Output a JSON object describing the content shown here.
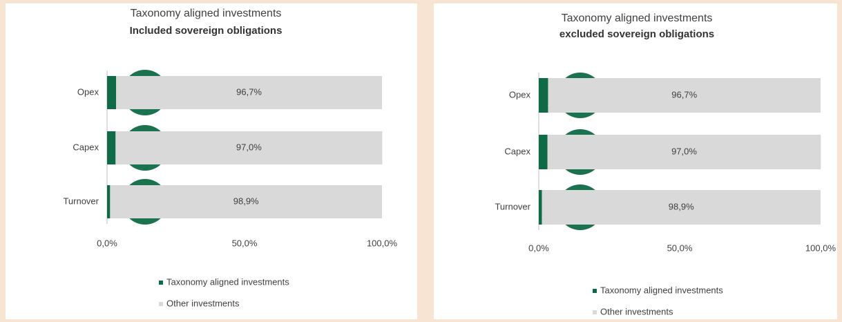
{
  "chart_data": [
    {
      "type": "bar",
      "orientation": "horizontal",
      "stacked": true,
      "title": "Taxonomy aligned investments",
      "subtitle": "Included sovereign obligations",
      "categories": [
        "Opex",
        "Capex",
        "Turnover"
      ],
      "series": [
        {
          "name": "Taxonomy aligned investments",
          "color": "#0e6b45",
          "values": [
            3.3,
            3.1,
            1.1
          ],
          "value_labels": [
            "3,3%",
            "3,1%",
            "1,1%"
          ]
        },
        {
          "name": "Other investments",
          "color": "#d9d9d9",
          "values": [
            96.7,
            97.0,
            98.9
          ],
          "value_labels": [
            "96,7%",
            "97,0%",
            "98,9%"
          ]
        }
      ],
      "xlim": [
        0,
        100
      ],
      "xticks": [
        {
          "value": 0,
          "label": "0,0%"
        },
        {
          "value": 50,
          "label": "50,0%"
        },
        {
          "value": 100,
          "label": "100,0%"
        }
      ]
    },
    {
      "type": "bar",
      "orientation": "horizontal",
      "stacked": true,
      "title": "Taxonomy aligned investments",
      "subtitle": "excluded sovereign obligations",
      "categories": [
        "Opex",
        "Capex",
        "Turnover"
      ],
      "series": [
        {
          "name": "Taxonomy aligned investments",
          "color": "#0e6b45",
          "values": [
            3.3,
            3.1,
            1.1
          ],
          "value_labels": [
            "3,3%",
            "3,1%",
            "1,1%"
          ]
        },
        {
          "name": "Other investments",
          "color": "#d9d9d9",
          "values": [
            96.7,
            97.0,
            98.9
          ],
          "value_labels": [
            "96,7%",
            "97,0%",
            "98,9%"
          ]
        }
      ],
      "xlim": [
        0,
        100
      ],
      "xticks": [
        {
          "value": 0,
          "label": "0,0%"
        },
        {
          "value": 50,
          "label": "50,0%"
        },
        {
          "value": 100,
          "label": "100,0%"
        }
      ]
    }
  ]
}
